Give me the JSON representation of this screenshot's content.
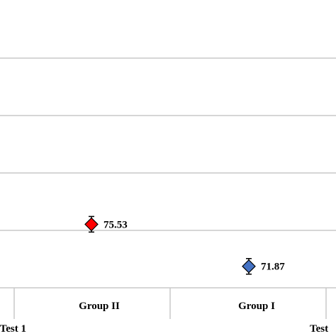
{
  "chart_data": {
    "type": "scatter",
    "y_grid_values": [
      75,
      80,
      85,
      90
    ],
    "ylim": [
      70,
      92
    ],
    "categories": [
      "Group II",
      "Group I"
    ],
    "groups": [
      "Test 1",
      "Test"
    ],
    "series": [
      {
        "color": "#ff0000",
        "marker": "diamond",
        "category": "Group II",
        "value": 75.53,
        "label": "75.53"
      },
      {
        "color": "#4472c4",
        "marker": "diamond",
        "category": "Group I",
        "value": 71.87,
        "label": "71.87"
      }
    ],
    "grid": true,
    "legend": "none"
  }
}
